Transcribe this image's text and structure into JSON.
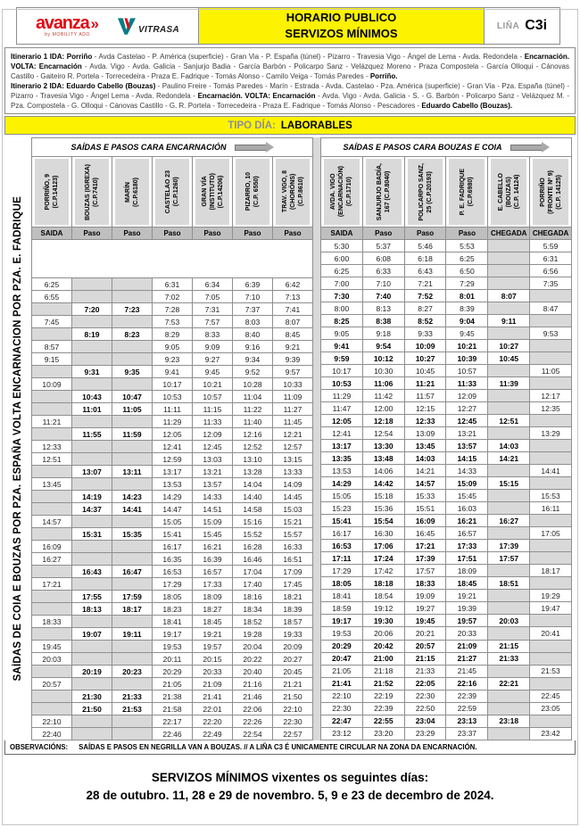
{
  "header": {
    "avanza_text": "avanza",
    "avanza_chevron": "»",
    "avanza_sub": "by MOBILITY ADO",
    "vitrasa_text": "VITRASA",
    "title_line1": "HORARIO PUBLICO",
    "title_line2": "SERVIZOS MÍNIMOS",
    "line_label": "LIÑA",
    "line_value": "C3i"
  },
  "itinerary": {
    "paragraphs": [
      [
        {
          "t": "Itinerario 1 IDA: Porriño",
          "b": true
        },
        {
          "t": " - Avda Castelao - P. América (superficie) - Gran Via - P. España (túnel) - Pizarro - Travesia Vigo - Ángel de Lema - Avda. Redondela - ",
          "b": false
        },
        {
          "t": "Encarnación. VOLTA: Encarnación",
          "b": true
        },
        {
          "t": " - Avda. Vigo - Avda. Galicia - Sanjurjo Badia - García Barbón - Policarpo Sanz - Velázquez Moreno - Praza Compostela - García Olloqui - Cánovas Castillo - Gaiteiro R. Portela - Torrecedeira - Praza E. Fadrique - Tomás Alonso - Camilo Veiga - Tomás Paredes - ",
          "b": false
        },
        {
          "t": "Porriño.",
          "b": true
        }
      ],
      [
        {
          "t": "Itinerario 2 IDA: Eduardo Cabello (Bouzas)",
          "b": true
        },
        {
          "t": " - Paulino Freire - Tomás Paredes - Marín - Estrada - Avda. Castelao - Pza. América (superficie) - Gran Via - Pza. España (túnel) - Pizarro - Travesia Vigo - Ángel Lema - Avda. Redondela - ",
          "b": false
        },
        {
          "t": "Encarnación. VOLTA: Encarnación",
          "b": true
        },
        {
          "t": " - Avda. Vigo - Avda. Galicia - S. - G. Barbón - Policarpo Sanz - Velázquez M. - Pza. Compostela - G. Olloqui - Cánovas Castillo - G. R. Portela - Torrecedeira - Praza E. Fadrique - Tomás Alonso - Pescadores - ",
          "b": false
        },
        {
          "t": "Eduardo Cabello (Bouzas).",
          "b": true
        }
      ]
    ]
  },
  "timetable": {
    "tipo_dia_label": "TIPO DÍA:",
    "tipo_dia_value": "LABORABLES",
    "side_label": "SAÍDAS DE COIA E BOUZAS POR PZA. ESPAÑA VOLTA ENCARNACION POR PZA. E. FADRIQUE",
    "left": {
      "group_title": "SAÍDAS E PASOS CARA ENCARNACIÓN",
      "bold_cells": [
        1,
        2
      ],
      "leading_blank_rows": 3,
      "columns": [
        {
          "name": "PORRIÑO, 9\n(C.P.14123)",
          "type": "SAIDA"
        },
        {
          "name": "BOUZAS (IGREXA)\n(C.P.7410)",
          "type": "Paso"
        },
        {
          "name": "MARÍN\n(C.P.6180)",
          "type": "Paso"
        },
        {
          "name": "CASTELAO 23\n(C.P.1260)",
          "type": "Paso"
        },
        {
          "name": "GRAN VÍA\n(INSTITUTO)\n(C.P.14206)",
          "type": "Paso"
        },
        {
          "name": "PIZARRO, 10\n(C.P. 6550)",
          "type": "Paso"
        },
        {
          "name": "TRAV. VIGO, 8\n(CHORÓNS)\n(C.P.8610)",
          "type": "Paso"
        }
      ],
      "rows": [
        {
          "c": [
            "6:25",
            "",
            "",
            "6:31",
            "6:34",
            "6:39",
            "6:42"
          ],
          "b": false
        },
        {
          "c": [
            "6:55",
            "",
            "",
            "7:02",
            "7:05",
            "7:10",
            "7:13"
          ],
          "b": false
        },
        {
          "c": [
            "",
            "7:20",
            "7:23",
            "7:28",
            "7:31",
            "7:37",
            "7:41"
          ],
          "b": true
        },
        {
          "c": [
            "7:45",
            "",
            "",
            "7:53",
            "7:57",
            "8:03",
            "8:07"
          ],
          "b": false
        },
        {
          "c": [
            "",
            "8:19",
            "8:23",
            "8:29",
            "8:33",
            "8:40",
            "8:45"
          ],
          "b": true
        },
        {
          "c": [
            "8:57",
            "",
            "",
            "9:05",
            "9:09",
            "9:16",
            "9:21"
          ],
          "b": false
        },
        {
          "c": [
            "9:15",
            "",
            "",
            "9:23",
            "9:27",
            "9:34",
            "9:39"
          ],
          "b": false
        },
        {
          "c": [
            "",
            "9:31",
            "9:35",
            "9:41",
            "9:45",
            "9:52",
            "9:57"
          ],
          "b": true
        },
        {
          "c": [
            "10:09",
            "",
            "",
            "10:17",
            "10:21",
            "10:28",
            "10:33"
          ],
          "b": false
        },
        {
          "c": [
            "",
            "10:43",
            "10:47",
            "10:53",
            "10:57",
            "11:04",
            "11:09"
          ],
          "b": true
        },
        {
          "c": [
            "",
            "11:01",
            "11:05",
            "11:11",
            "11:15",
            "11:22",
            "11:27"
          ],
          "b": true
        },
        {
          "c": [
            "11:21",
            "",
            "",
            "11:29",
            "11:33",
            "11:40",
            "11:45"
          ],
          "b": false
        },
        {
          "c": [
            "",
            "11:55",
            "11:59",
            "12:05",
            "12:09",
            "12:16",
            "12:21"
          ],
          "b": true
        },
        {
          "c": [
            "12:33",
            "",
            "",
            "12:41",
            "12:45",
            "12:52",
            "12:57"
          ],
          "b": false
        },
        {
          "c": [
            "12:51",
            "",
            "",
            "12:59",
            "13:03",
            "13:10",
            "13:15"
          ],
          "b": false
        },
        {
          "c": [
            "",
            "13:07",
            "13:11",
            "13:17",
            "13:21",
            "13:28",
            "13:33"
          ],
          "b": true
        },
        {
          "c": [
            "13:45",
            "",
            "",
            "13:53",
            "13:57",
            "14:04",
            "14:09"
          ],
          "b": false
        },
        {
          "c": [
            "",
            "14:19",
            "14:23",
            "14:29",
            "14:33",
            "14:40",
            "14:45"
          ],
          "b": true
        },
        {
          "c": [
            "",
            "14:37",
            "14:41",
            "14:47",
            "14:51",
            "14:58",
            "15:03"
          ],
          "b": true
        },
        {
          "c": [
            "14:57",
            "",
            "",
            "15:05",
            "15:09",
            "15:16",
            "15:21"
          ],
          "b": false
        },
        {
          "c": [
            "",
            "15:31",
            "15:35",
            "15:41",
            "15:45",
            "15:52",
            "15:57"
          ],
          "b": true
        },
        {
          "c": [
            "16:09",
            "",
            "",
            "16:17",
            "16:21",
            "16:28",
            "16:33"
          ],
          "b": false
        },
        {
          "c": [
            "16:27",
            "",
            "",
            "16:35",
            "16:39",
            "16:46",
            "16:51"
          ],
          "b": false
        },
        {
          "c": [
            "",
            "16:43",
            "16:47",
            "16:53",
            "16:57",
            "17:04",
            "17:09"
          ],
          "b": true
        },
        {
          "c": [
            "17:21",
            "",
            "",
            "17:29",
            "17:33",
            "17:40",
            "17:45"
          ],
          "b": false
        },
        {
          "c": [
            "",
            "17:55",
            "17:59",
            "18:05",
            "18:09",
            "18:16",
            "18:21"
          ],
          "b": true
        },
        {
          "c": [
            "",
            "18:13",
            "18:17",
            "18:23",
            "18:27",
            "18:34",
            "18:39"
          ],
          "b": true
        },
        {
          "c": [
            "18:33",
            "",
            "",
            "18:41",
            "18:45",
            "18:52",
            "18:57"
          ],
          "b": false
        },
        {
          "c": [
            "",
            "19:07",
            "19:11",
            "19:17",
            "19:21",
            "19:28",
            "19:33"
          ],
          "b": true
        },
        {
          "c": [
            "19:45",
            "",
            "",
            "19:53",
            "19:57",
            "20:04",
            "20:09"
          ],
          "b": false
        },
        {
          "c": [
            "20:03",
            "",
            "",
            "20:11",
            "20:15",
            "20:22",
            "20:27"
          ],
          "b": false
        },
        {
          "c": [
            "",
            "20:19",
            "20:23",
            "20:29",
            "20:33",
            "20:40",
            "20:45"
          ],
          "b": true
        },
        {
          "c": [
            "20:57",
            "",
            "",
            "21:05",
            "21:09",
            "21:16",
            "21:21"
          ],
          "b": false
        },
        {
          "c": [
            "",
            "21:30",
            "21:33",
            "21:38",
            "21:41",
            "21:46",
            "21:50"
          ],
          "b": true
        },
        {
          "c": [
            "",
            "21:50",
            "21:53",
            "21:58",
            "22:01",
            "22:06",
            "22:10"
          ],
          "b": true
        },
        {
          "c": [
            "22:10",
            "",
            "",
            "22:17",
            "22:20",
            "22:26",
            "22:30"
          ],
          "b": false
        },
        {
          "c": [
            "22:40",
            "",
            "",
            "22:46",
            "22:49",
            "22:54",
            "22:57"
          ],
          "b": false
        }
      ]
    },
    "right": {
      "group_title": "SAÍDAS E PASOS CARA BOUZAS E COIA",
      "bold_cells": "all",
      "leading_blank_rows": 0,
      "columns": [
        {
          "name": "AVDA. VIGO\n(ENCARNACIÓN)\n(C.P.1710)",
          "type": "SAIDA"
        },
        {
          "name": "SANJURJO BADÍA,\n167 (C.P.8040)",
          "type": "Paso"
        },
        {
          "name": "POLICARPO SANZ,\n25 (C.P.20193)",
          "type": "Paso"
        },
        {
          "name": "P. E. FADRIQUE\n(C.P.6980)",
          "type": "Paso"
        },
        {
          "name": "E. CABELLO\n(BOUZAS)\n(C.P. 14124)",
          "type": "CHEGADA"
        },
        {
          "name": "PORRIÑO\n(FRONTE Nº 9)\n(C.P. 14125)",
          "type": "CHEGADA"
        }
      ],
      "rows": [
        {
          "c": [
            "5:30",
            "5:37",
            "5:46",
            "5:53",
            "",
            "5:59"
          ],
          "b": false
        },
        {
          "c": [
            "6:00",
            "6:08",
            "6:18",
            "6:25",
            "",
            "6:31"
          ],
          "b": false
        },
        {
          "c": [
            "6:25",
            "6:33",
            "6:43",
            "6:50",
            "",
            "6:56"
          ],
          "b": false
        },
        {
          "c": [
            "7:00",
            "7:10",
            "7:21",
            "7:29",
            "",
            "7:35"
          ],
          "b": false
        },
        {
          "c": [
            "7:30",
            "7:40",
            "7:52",
            "8:01",
            "8:07",
            ""
          ],
          "b": true
        },
        {
          "c": [
            "8:00",
            "8:13",
            "8:27",
            "8:39",
            "",
            "8:47"
          ],
          "b": false
        },
        {
          "c": [
            "8:25",
            "8:38",
            "8:52",
            "9:04",
            "9:11",
            ""
          ],
          "b": true
        },
        {
          "c": [
            "9:05",
            "9:18",
            "9:33",
            "9:45",
            "",
            "9:53"
          ],
          "b": false
        },
        {
          "c": [
            "9:41",
            "9:54",
            "10:09",
            "10:21",
            "10:27",
            ""
          ],
          "b": true
        },
        {
          "c": [
            "9:59",
            "10:12",
            "10:27",
            "10:39",
            "10:45",
            ""
          ],
          "b": true
        },
        {
          "c": [
            "10:17",
            "10:30",
            "10:45",
            "10:57",
            "",
            "11:05"
          ],
          "b": false
        },
        {
          "c": [
            "10:53",
            "11:06",
            "11:21",
            "11:33",
            "11:39",
            ""
          ],
          "b": true
        },
        {
          "c": [
            "11:29",
            "11:42",
            "11:57",
            "12:09",
            "",
            "12:17"
          ],
          "b": false
        },
        {
          "c": [
            "11:47",
            "12:00",
            "12:15",
            "12:27",
            "",
            "12:35"
          ],
          "b": false
        },
        {
          "c": [
            "12:05",
            "12:18",
            "12:33",
            "12:45",
            "12:51",
            ""
          ],
          "b": true
        },
        {
          "c": [
            "12:41",
            "12:54",
            "13:09",
            "13:21",
            "",
            "13:29"
          ],
          "b": false
        },
        {
          "c": [
            "13:17",
            "13:30",
            "13:45",
            "13:57",
            "14:03",
            ""
          ],
          "b": true
        },
        {
          "c": [
            "13:35",
            "13:48",
            "14:03",
            "14:15",
            "14:21",
            ""
          ],
          "b": true
        },
        {
          "c": [
            "13:53",
            "14:06",
            "14:21",
            "14:33",
            "",
            "14:41"
          ],
          "b": false
        },
        {
          "c": [
            "14:29",
            "14:42",
            "14:57",
            "15:09",
            "15:15",
            ""
          ],
          "b": true
        },
        {
          "c": [
            "15:05",
            "15:18",
            "15:33",
            "15:45",
            "",
            "15:53"
          ],
          "b": false
        },
        {
          "c": [
            "15:23",
            "15:36",
            "15:51",
            "16:03",
            "",
            "16:11"
          ],
          "b": false
        },
        {
          "c": [
            "15:41",
            "15:54",
            "16:09",
            "16:21",
            "16:27",
            ""
          ],
          "b": true
        },
        {
          "c": [
            "16:17",
            "16:30",
            "16:45",
            "16:57",
            "",
            "17:05"
          ],
          "b": false
        },
        {
          "c": [
            "16:53",
            "17:06",
            "17:21",
            "17:33",
            "17:39",
            ""
          ],
          "b": true
        },
        {
          "c": [
            "17:11",
            "17:24",
            "17:39",
            "17:51",
            "17:57",
            ""
          ],
          "b": true
        },
        {
          "c": [
            "17:29",
            "17:42",
            "17:57",
            "18:09",
            "",
            "18:17"
          ],
          "b": false
        },
        {
          "c": [
            "18:05",
            "18:18",
            "18:33",
            "18:45",
            "18:51",
            ""
          ],
          "b": true
        },
        {
          "c": [
            "18:41",
            "18:54",
            "19:09",
            "19:21",
            "",
            "19:29"
          ],
          "b": false
        },
        {
          "c": [
            "18:59",
            "19:12",
            "19:27",
            "19:39",
            "",
            "19:47"
          ],
          "b": false
        },
        {
          "c": [
            "19:17",
            "19:30",
            "19:45",
            "19:57",
            "20:03",
            ""
          ],
          "b": true
        },
        {
          "c": [
            "19:53",
            "20:06",
            "20:21",
            "20:33",
            "",
            "20:41"
          ],
          "b": false
        },
        {
          "c": [
            "20:29",
            "20:42",
            "20:57",
            "21:09",
            "21:15",
            ""
          ],
          "b": true
        },
        {
          "c": [
            "20:47",
            "21:00",
            "21:15",
            "21:27",
            "21:33",
            ""
          ],
          "b": true
        },
        {
          "c": [
            "21:05",
            "21:18",
            "21:33",
            "21:45",
            "",
            "21:53"
          ],
          "b": false
        },
        {
          "c": [
            "21:41",
            "21:52",
            "22:05",
            "22:16",
            "22:21",
            ""
          ],
          "b": true
        },
        {
          "c": [
            "22:10",
            "22:19",
            "22:30",
            "22:39",
            "",
            "22:45"
          ],
          "b": false
        },
        {
          "c": [
            "22:30",
            "22:39",
            "22:50",
            "22:59",
            "",
            "23:05"
          ],
          "b": false
        },
        {
          "c": [
            "22:47",
            "22:55",
            "23:04",
            "23:13",
            "23:18",
            ""
          ],
          "b": true
        },
        {
          "c": [
            "23:12",
            "23:20",
            "23:29",
            "23:37",
            "",
            "23:42"
          ],
          "b": false
        }
      ]
    },
    "observations_label": "OBSERVACIÓNS:",
    "observations_text": "SAÍDAS E PASOS EN NEGRILLA VAN A BOUZAS. // A LIÑA C3 É UNICAMENTE CIRCULAR NA ZONA DA ENCARNACIÓN.",
    "colors": {
      "accent_yellow": "#fdf300",
      "brand_red": "#e30613",
      "empty_cell_gray": "#d9d9d9",
      "header_gray": "#bfbfbf"
    }
  },
  "footer": {
    "line1": "SERVIZOS MÍNIMOS vixentes os seguintes días:",
    "line2": "28 de outubro. 11, 28 e 29 de novembro. 5, 9 e 23 de decembro de 2024."
  }
}
